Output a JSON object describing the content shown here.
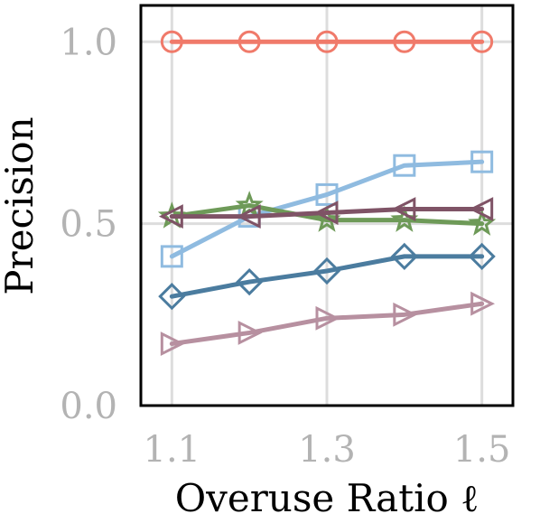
{
  "chart_data": {
    "type": "line",
    "title": "",
    "xlabel": "Overuse Ratio ℓ",
    "ylabel": "Precision",
    "x": [
      1.1,
      1.2,
      1.3,
      1.4,
      1.5
    ],
    "xlim": [
      1.06,
      1.54
    ],
    "ylim": [
      0.0,
      1.1
    ],
    "xticks": [
      1.1,
      1.3,
      1.5
    ],
    "xtick_labels": [
      "1.1",
      "1.3",
      "1.5"
    ],
    "yticks": [
      0.0,
      0.5,
      1.0
    ],
    "ytick_labels": [
      "0.0",
      "0.5",
      "1.0"
    ],
    "grid": true,
    "series": [
      {
        "marker": "circle",
        "color": "#f07a6a",
        "values": [
          1.0,
          1.0,
          1.0,
          1.0,
          1.0
        ]
      },
      {
        "marker": "square",
        "color": "#8fbbe0",
        "values": [
          0.41,
          0.52,
          0.58,
          0.66,
          0.67
        ]
      },
      {
        "marker": "star",
        "color": "#6e9a58",
        "values": [
          0.52,
          0.55,
          0.51,
          0.51,
          0.5
        ]
      },
      {
        "marker": "triangle-left",
        "color": "#7f5366",
        "values": [
          0.52,
          0.52,
          0.53,
          0.54,
          0.54
        ]
      },
      {
        "marker": "diamond",
        "color": "#4b7c9f",
        "values": [
          0.3,
          0.34,
          0.37,
          0.41,
          0.41
        ]
      },
      {
        "marker": "triangle-right",
        "color": "#b790a0",
        "values": [
          0.17,
          0.2,
          0.24,
          0.25,
          0.28
        ]
      }
    ]
  }
}
